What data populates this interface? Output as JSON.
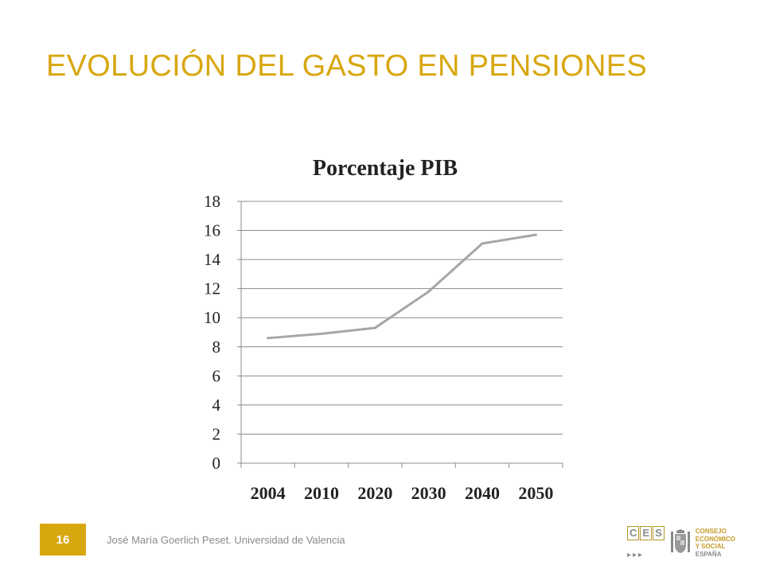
{
  "slide": {
    "title": "EVOLUCIÓN DEL GASTO EN PENSIONES",
    "page_number": "16",
    "footer": "José María Goerlich Peset. Universidad de Valencia",
    "accent_color": "#d8a710"
  },
  "logo": {
    "letters": [
      "C",
      "E",
      "S"
    ],
    "arrows": "▸▸▸",
    "lines": [
      "CONSEJO",
      "ECONÓMICO",
      "Y SOCIAL",
      "ESPAÑA"
    ],
    "seal_icon": "coat-of-arms-icon"
  },
  "chart_data": {
    "type": "line",
    "title": "Porcentaje PIB",
    "categories": [
      "2004",
      "2010",
      "2020",
      "2030",
      "2040",
      "2050"
    ],
    "series": [
      {
        "values": [
          8.6,
          8.9,
          9.3,
          11.8,
          15.1,
          15.7
        ],
        "color": "#a6a6a6"
      }
    ],
    "ylim": [
      0,
      18
    ],
    "yticks": [
      0,
      2,
      4,
      6,
      8,
      10,
      12,
      14,
      16,
      18
    ],
    "grid": true,
    "legend": "none",
    "xlabel": "",
    "ylabel": ""
  }
}
